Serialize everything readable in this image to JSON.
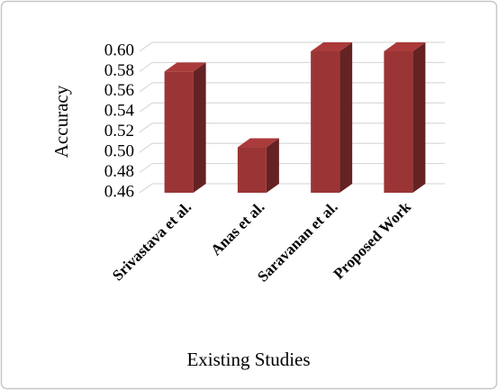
{
  "chart_data": {
    "type": "bar3d",
    "categories": [
      "Srivastava et al.",
      "Anas et al.",
      "Saravanan et al.",
      "Proposed Work"
    ],
    "values": [
      0.58,
      0.505,
      0.6,
      0.6
    ],
    "color": "#9b3535",
    "x_label": "Existing Studies",
    "y_label": "Accuracy",
    "ylim": [
      0.46,
      0.6
    ],
    "yticks": [
      0.46,
      0.48,
      {
        "value": 0.5,
        "label": "0.50"
      },
      0.52,
      0.54,
      0.56,
      0.58,
      {
        "value": 0.6,
        "label": "0.60"
      }
    ],
    "grid": true
  }
}
